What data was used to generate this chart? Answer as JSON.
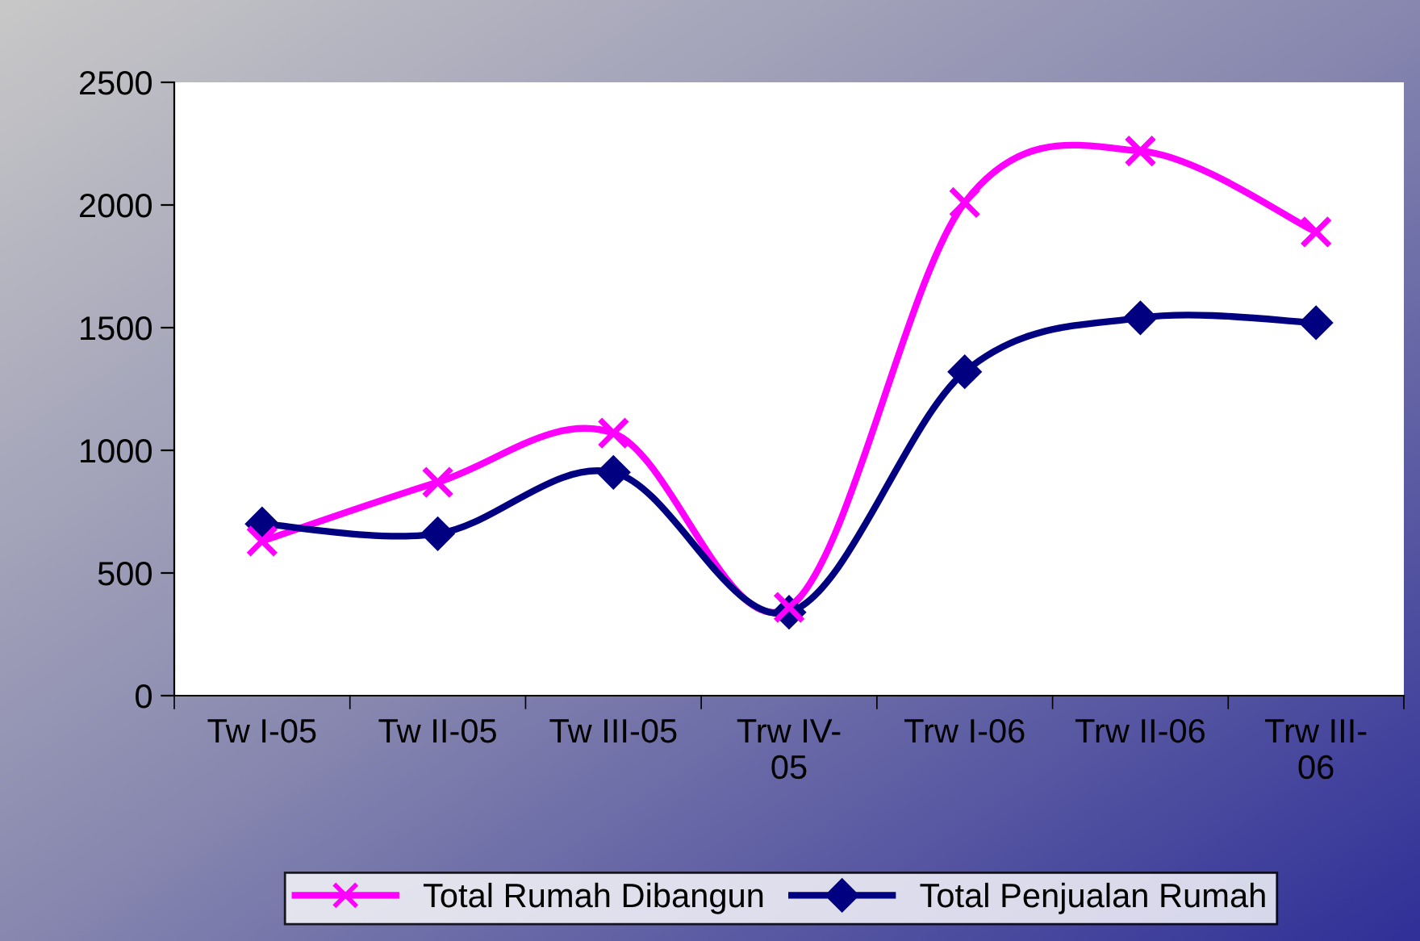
{
  "chart_data": {
    "type": "line",
    "categories": [
      "Tw I-05",
      "Tw II-05",
      "Tw III-05",
      "Trw IV-\n05",
      "Trw I-06",
      "Trw II-06",
      "Trw III-\n06"
    ],
    "series": [
      {
        "name": "Total Rumah Dibangun",
        "color": "#ff00ff",
        "marker": "cross",
        "values": [
          630,
          870,
          1070,
          360,
          2010,
          2220,
          1890
        ]
      },
      {
        "name": "Total Penjualan Rumah",
        "color": "#000080",
        "marker": "diamond",
        "values": [
          700,
          660,
          910,
          340,
          1320,
          1540,
          1520
        ]
      }
    ],
    "ylim": [
      0,
      2500
    ],
    "yticks": [
      0,
      500,
      1000,
      1500,
      2000,
      2500
    ],
    "grid": false,
    "legend": "bottom",
    "line_style": "solid"
  }
}
